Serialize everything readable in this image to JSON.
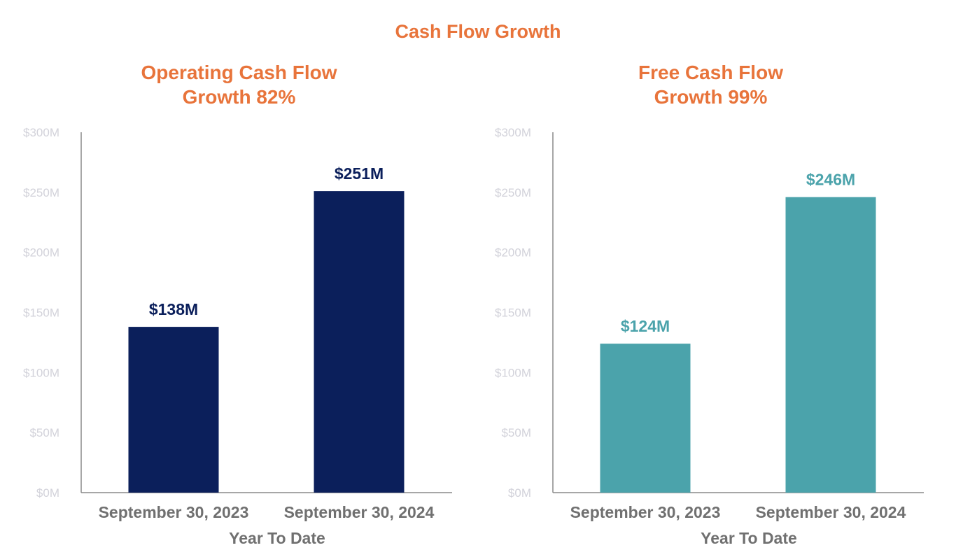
{
  "title": "Cash Flow Growth",
  "colors": {
    "title": "#e8743b",
    "navy": "#0b1f5b",
    "teal": "#4ba3ab",
    "axis_text": "#d2d2da",
    "label_text": "#707070"
  },
  "chart_data": [
    {
      "type": "bar",
      "title_line1": "Operating Cash Flow",
      "title_line2": "Growth 82%",
      "categories": [
        "September 30, 2023",
        "September 30, 2024"
      ],
      "values": [
        138,
        251
      ],
      "data_labels": [
        "$138M",
        "$251M"
      ],
      "xlabel": "Year To Date",
      "ylabel": "",
      "ylim": [
        0,
        300
      ],
      "yticks": [
        "$0M",
        "$50M",
        "$100M",
        "$150M",
        "$200M",
        "$250M",
        "$300M"
      ],
      "color": "#0b1f5b"
    },
    {
      "type": "bar",
      "title_line1": "Free Cash Flow",
      "title_line2": "Growth 99%",
      "categories": [
        "September 30, 2023",
        "September 30, 2024"
      ],
      "values": [
        124,
        246
      ],
      "data_labels": [
        "$124M",
        "$246M"
      ],
      "xlabel": "Year To Date",
      "ylabel": "",
      "ylim": [
        0,
        300
      ],
      "yticks": [
        "$0M",
        "$50M",
        "$100M",
        "$150M",
        "$200M",
        "$250M",
        "$300M"
      ],
      "color": "#4ba3ab"
    }
  ]
}
